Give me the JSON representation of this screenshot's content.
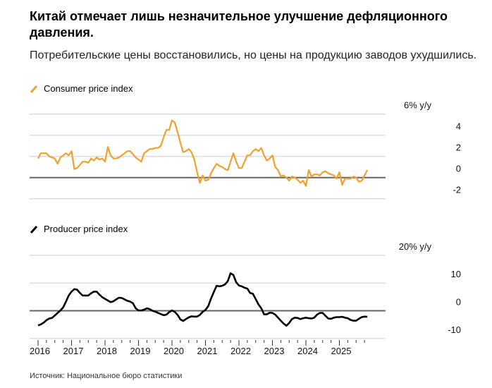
{
  "title": "Китай отмечает лишь незначительное улучшение дефляционного давления.",
  "subtitle": "Потребительские цены восстановились, но цены на продукцию заводов ухудшились.",
  "source": "Источник: Национальное бюро статистики",
  "colors": {
    "cpi": "#f0a030",
    "ppi": "#000000",
    "grid": "#dddddd",
    "zero": "#666666"
  },
  "chart_data": [
    {
      "type": "line",
      "legend": "Consumer price index",
      "unit_label": "6% y/y",
      "ylim": [
        -3,
        6
      ],
      "yticks": [
        {
          "v": 6,
          "label": "6% y/y"
        },
        {
          "v": 4,
          "label": "4"
        },
        {
          "v": 2,
          "label": "2"
        },
        {
          "v": 0,
          "label": "0"
        },
        {
          "v": -2,
          "label": "-2"
        }
      ],
      "x_start": "2016-01",
      "frequency": "monthly",
      "grid": true,
      "values": [
        1.8,
        2.3,
        2.3,
        2.3,
        2.0,
        1.9,
        1.8,
        1.3,
        1.9,
        2.1,
        2.3,
        2.1,
        2.5,
        0.8,
        0.9,
        1.2,
        1.5,
        1.5,
        1.4,
        1.8,
        1.6,
        1.9,
        1.7,
        1.8,
        1.5,
        2.9,
        2.1,
        1.8,
        1.8,
        1.9,
        2.1,
        2.3,
        2.5,
        2.5,
        2.2,
        1.9,
        1.7,
        1.5,
        2.3,
        2.5,
        2.7,
        2.7,
        2.8,
        2.8,
        3.0,
        3.8,
        4.5,
        4.5,
        5.4,
        5.2,
        4.3,
        3.3,
        2.4,
        2.5,
        2.7,
        2.4,
        1.7,
        0.5,
        -0.5,
        0.2,
        -0.3,
        -0.2,
        0.4,
        0.9,
        1.3,
        1.1,
        1.0,
        0.8,
        0.7,
        1.5,
        2.3,
        1.5,
        0.9,
        0.9,
        1.5,
        2.1,
        2.1,
        2.5,
        2.7,
        2.5,
        2.8,
        2.1,
        1.6,
        1.8,
        2.1,
        1.0,
        0.7,
        0.1,
        0.2,
        0.0,
        -0.3,
        0.1,
        0.0,
        -0.2,
        -0.5,
        -0.3,
        -0.8,
        0.7,
        0.1,
        0.3,
        0.3,
        0.2,
        0.5,
        0.6,
        0.4,
        0.3,
        0.2,
        -0.1,
        0.5,
        -0.7,
        -0.1,
        -0.1,
        -0.1,
        0.1,
        0.0,
        -0.4,
        -0.3,
        0.2,
        0.7
      ]
    },
    {
      "type": "line",
      "legend": "Producer price index",
      "unit_label": "20% y/y",
      "ylim": [
        -11,
        20
      ],
      "yticks": [
        {
          "v": 20,
          "label": "20% y/y"
        },
        {
          "v": 10,
          "label": "10"
        },
        {
          "v": 0,
          "label": "0"
        },
        {
          "v": -10,
          "label": "-10"
        }
      ],
      "x_start": "2016-01",
      "frequency": "monthly",
      "grid": true,
      "xticks": [
        "2016",
        "2017",
        "2018",
        "2019",
        "2020",
        "2021",
        "2022",
        "2023",
        "2024",
        "2025"
      ],
      "values": [
        -5.3,
        -4.9,
        -4.3,
        -3.4,
        -2.8,
        -2.6,
        -1.7,
        -0.8,
        0.1,
        1.2,
        3.3,
        5.5,
        6.9,
        7.8,
        7.6,
        6.4,
        5.5,
        5.5,
        5.5,
        6.3,
        6.9,
        6.9,
        5.8,
        4.9,
        4.3,
        3.7,
        3.1,
        3.4,
        4.1,
        4.7,
        4.6,
        4.1,
        3.6,
        3.3,
        2.7,
        0.9,
        0.1,
        0.1,
        0.4,
        0.9,
        0.6,
        0.0,
        -0.3,
        -0.8,
        -1.2,
        -1.6,
        -1.4,
        -0.5,
        0.1,
        -0.4,
        -1.5,
        -3.1,
        -3.7,
        -3.0,
        -2.4,
        -2.0,
        -2.1,
        -2.1,
        -1.5,
        -0.4,
        0.3,
        1.7,
        4.4,
        6.8,
        9.0,
        8.8,
        9.0,
        9.5,
        10.7,
        13.5,
        12.9,
        10.3,
        9.1,
        8.8,
        8.3,
        8.0,
        6.4,
        6.1,
        4.2,
        2.3,
        0.9,
        -1.3,
        -1.3,
        -0.7,
        -0.8,
        -1.4,
        -2.5,
        -3.6,
        -4.6,
        -5.4,
        -4.4,
        -3.0,
        -2.5,
        -2.6,
        -3.0,
        -2.7,
        -2.5,
        -2.7,
        -2.8,
        -2.5,
        -1.4,
        -0.8,
        -0.8,
        -1.8,
        -2.8,
        -2.9,
        -2.5,
        -2.3,
        -2.3,
        -2.2,
        -2.5,
        -2.7,
        -3.3,
        -3.6,
        -3.6,
        -2.9,
        -2.3,
        -2.1,
        -2.2
      ]
    }
  ]
}
